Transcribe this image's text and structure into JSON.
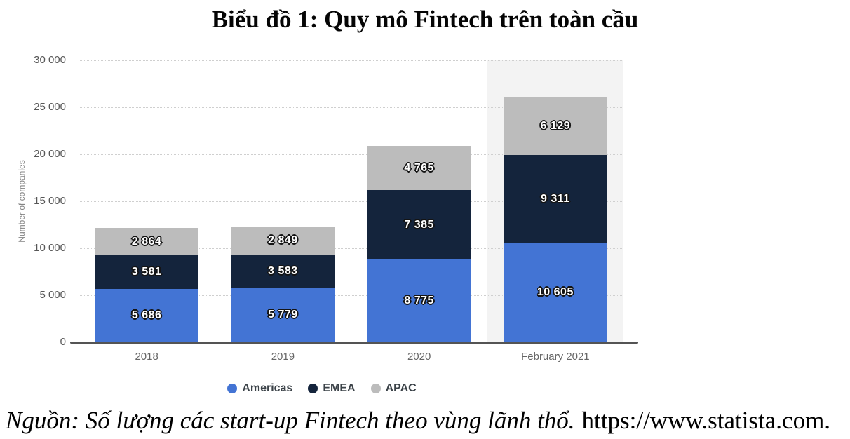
{
  "title": "Biểu đồ 1: Quy mô Fintech trên toàn cầu",
  "chart_data": {
    "type": "bar",
    "stacked": true,
    "categories": [
      "2018",
      "2019",
      "2020",
      "February 2021"
    ],
    "series": [
      {
        "name": "Americas",
        "color": "#4374d4",
        "values": [
          5686,
          5779,
          8775,
          10605
        ],
        "labels": [
          "5 686",
          "5 779",
          "8 775",
          "10 605"
        ]
      },
      {
        "name": "EMEA",
        "color": "#14243c",
        "values": [
          3581,
          3583,
          7385,
          9311
        ],
        "labels": [
          "3 581",
          "3 583",
          "7 385",
          "9 311"
        ]
      },
      {
        "name": "APAC",
        "color": "#bcbcbc",
        "values": [
          2864,
          2849,
          4765,
          6129
        ],
        "labels": [
          "2 864",
          "2 849",
          "4 765",
          "6 129"
        ]
      }
    ],
    "ylabel": "Number of companies",
    "ylim": [
      0,
      30000
    ],
    "ytick_step": 5000,
    "yticks": [
      "0",
      "5 000",
      "10 000",
      "15 000",
      "20 000",
      "25 000",
      "30 000"
    ],
    "grid": "horizontal-dotted",
    "legend_position": "bottom",
    "highlighted_category": "February 2021",
    "highlight_color": "#f3f3f3"
  },
  "source": {
    "prefix_italic": "Nguồn: Số lượng các start-up Fintech theo vùng lãnh thổ.",
    "link_text": "https://www.statista.com."
  }
}
